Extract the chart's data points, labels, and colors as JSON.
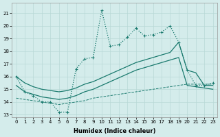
{
  "bg_color": "#d4eceb",
  "grid_color": "#b8d8d6",
  "line_color": "#1a7a6e",
  "xlabel": "Humidex (Indice chaleur)",
  "xlim": [
    -0.5,
    23.5
  ],
  "ylim": [
    12.8,
    21.8
  ],
  "xticks": [
    0,
    1,
    2,
    3,
    4,
    5,
    6,
    7,
    8,
    9,
    10,
    11,
    12,
    13,
    14,
    15,
    16,
    17,
    18,
    19,
    20,
    21,
    22,
    23
  ],
  "yticks": [
    13,
    14,
    15,
    16,
    17,
    18,
    19,
    20,
    21
  ],
  "series": [
    {
      "x": [
        0,
        1,
        2,
        3,
        4,
        5,
        6,
        7,
        8,
        9,
        10,
        11,
        12,
        13,
        14,
        15,
        16,
        17,
        18,
        19,
        20,
        21,
        22,
        23
      ],
      "y": [
        16.0,
        14.8,
        14.5,
        14.0,
        14.0,
        13.2,
        13.2,
        16.6,
        17.4,
        17.5,
        21.2,
        18.4,
        18.5,
        19.1,
        19.8,
        19.2,
        19.3,
        19.5,
        20.0,
        18.7,
        16.5,
        15.3,
        15.3,
        15.5
      ],
      "linestyle": ":",
      "marker": "+",
      "linewidth": 0.9
    },
    {
      "x": [
        0,
        1,
        2,
        3,
        4,
        5,
        6,
        7,
        8,
        9,
        10,
        11,
        12,
        13,
        14,
        15,
        16,
        17,
        18,
        19,
        20,
        21,
        22,
        23
      ],
      "y": [
        16.0,
        15.5,
        15.2,
        15.0,
        14.9,
        14.8,
        14.9,
        15.1,
        15.4,
        15.6,
        15.9,
        16.2,
        16.5,
        16.8,
        17.1,
        17.3,
        17.5,
        17.7,
        17.9,
        18.7,
        16.5,
        16.3,
        15.3,
        15.3
      ],
      "linestyle": "-",
      "marker": null,
      "linewidth": 0.9
    },
    {
      "x": [
        0,
        1,
        2,
        3,
        4,
        5,
        6,
        7,
        8,
        9,
        10,
        11,
        12,
        13,
        14,
        15,
        16,
        17,
        18,
        19,
        20,
        21,
        22,
        23
      ],
      "y": [
        15.3,
        14.8,
        14.6,
        14.4,
        14.3,
        14.2,
        14.3,
        14.5,
        14.8,
        15.0,
        15.3,
        15.6,
        15.9,
        16.2,
        16.5,
        16.7,
        16.9,
        17.1,
        17.3,
        17.5,
        15.3,
        15.2,
        15.1,
        15.0
      ],
      "linestyle": "-",
      "marker": null,
      "linewidth": 0.9
    },
    {
      "x": [
        0,
        1,
        2,
        3,
        4,
        5,
        6,
        7,
        8,
        9,
        10,
        11,
        12,
        13,
        14,
        15,
        16,
        17,
        18,
        19,
        20,
        21,
        22,
        23
      ],
      "y": [
        14.3,
        14.2,
        14.1,
        14.0,
        13.9,
        13.8,
        13.9,
        14.0,
        14.1,
        14.3,
        14.4,
        14.5,
        14.6,
        14.7,
        14.8,
        14.9,
        15.0,
        15.1,
        15.2,
        15.3,
        15.4,
        15.4,
        15.4,
        15.4
      ],
      "linestyle": "--",
      "marker": null,
      "linewidth": 0.7
    }
  ]
}
